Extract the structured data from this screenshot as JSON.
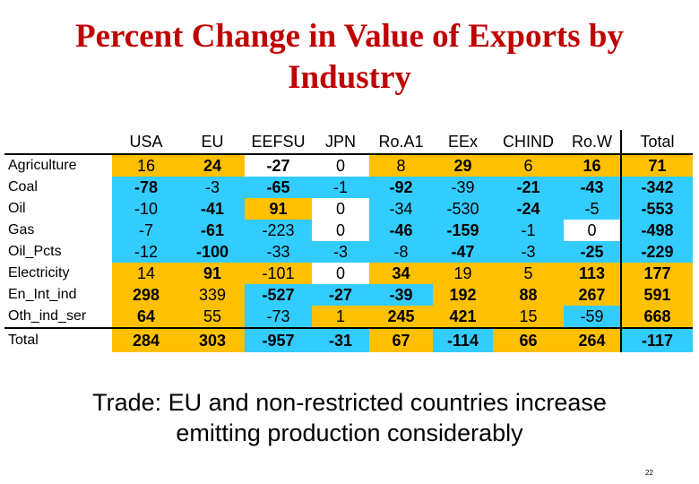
{
  "title_line1": "Percent Change in Value of Exports by",
  "title_line2": "Industry",
  "table": {
    "headers": [
      "USA",
      "EU",
      "EEFSU",
      "JPN",
      "Ro.A1",
      "EEx",
      "CHIND",
      "Ro.W",
      "Total"
    ],
    "rows": [
      {
        "label": "Agriculture",
        "values": [
          "16",
          "24",
          "-27",
          "0",
          "8",
          "29",
          "6",
          "16",
          "71"
        ],
        "bold": [
          false,
          true,
          true,
          false,
          false,
          true,
          false,
          true,
          true
        ],
        "colors": [
          "y",
          "y",
          "w",
          "w",
          "y",
          "y",
          "y",
          "y",
          "y"
        ]
      },
      {
        "label": "Coal",
        "values": [
          "-78",
          "-3",
          "-65",
          "-1",
          "-92",
          "-39",
          "-21",
          "-43",
          "-342"
        ],
        "bold": [
          true,
          false,
          true,
          false,
          true,
          false,
          true,
          true,
          true
        ],
        "colors": [
          "c",
          "c",
          "c",
          "c",
          "c",
          "c",
          "c",
          "c",
          "c"
        ]
      },
      {
        "label": "Oil",
        "values": [
          "-10",
          "-41",
          "91",
          "0",
          "-34",
          "-530",
          "-24",
          "-5",
          "-553"
        ],
        "bold": [
          false,
          true,
          true,
          false,
          false,
          false,
          true,
          false,
          true
        ],
        "colors": [
          "c",
          "c",
          "y",
          "w",
          "c",
          "c",
          "c",
          "c",
          "c"
        ]
      },
      {
        "label": "Gas",
        "values": [
          "-7",
          "-61",
          "-223",
          "0",
          "-46",
          "-159",
          "-1",
          "0",
          "-498"
        ],
        "bold": [
          false,
          true,
          false,
          false,
          true,
          true,
          false,
          false,
          true
        ],
        "colors": [
          "c",
          "c",
          "c",
          "w",
          "c",
          "c",
          "c",
          "w",
          "c"
        ]
      },
      {
        "label": "Oil_Pcts",
        "values": [
          "-12",
          "-100",
          "-33",
          "-3",
          "-8",
          "-47",
          "-3",
          "-25",
          "-229"
        ],
        "bold": [
          false,
          true,
          false,
          false,
          false,
          true,
          false,
          true,
          true
        ],
        "colors": [
          "c",
          "c",
          "c",
          "c",
          "c",
          "c",
          "c",
          "c",
          "c"
        ]
      },
      {
        "label": "Electricity",
        "values": [
          "14",
          "91",
          "-101",
          "0",
          "34",
          "19",
          "5",
          "113",
          "177"
        ],
        "bold": [
          false,
          true,
          false,
          false,
          true,
          false,
          false,
          true,
          true
        ],
        "colors": [
          "y",
          "y",
          "y",
          "w",
          "y",
          "y",
          "y",
          "y",
          "y"
        ]
      },
      {
        "label": "En_Int_ind",
        "values": [
          "298",
          "339",
          "-527",
          "-27",
          "-39",
          "192",
          "88",
          "267",
          "591"
        ],
        "bold": [
          true,
          false,
          true,
          true,
          true,
          true,
          true,
          true,
          true
        ],
        "colors": [
          "y",
          "y",
          "c",
          "c",
          "c",
          "y",
          "y",
          "y",
          "y"
        ]
      },
      {
        "label": "Oth_ind_ser",
        "values": [
          "64",
          "55",
          "-73",
          "1",
          "245",
          "421",
          "15",
          "-59",
          "668"
        ],
        "bold": [
          true,
          false,
          false,
          false,
          true,
          true,
          false,
          false,
          true
        ],
        "colors": [
          "y",
          "y",
          "c",
          "y",
          "y",
          "y",
          "y",
          "c",
          "y"
        ]
      }
    ],
    "total": {
      "label": "Total",
      "values": [
        "284",
        "303",
        "-957",
        "-31",
        "67",
        "-114",
        "66",
        "264",
        "-117"
      ],
      "bold": [
        true,
        true,
        true,
        true,
        true,
        true,
        true,
        true,
        true
      ],
      "colors": [
        "y",
        "y",
        "c",
        "c",
        "y",
        "c",
        "y",
        "y",
        "c"
      ]
    }
  },
  "subtitle_line1": "Trade: EU and non-restricted countries increase",
  "subtitle_line2": "emitting production considerably",
  "page_number": "22"
}
